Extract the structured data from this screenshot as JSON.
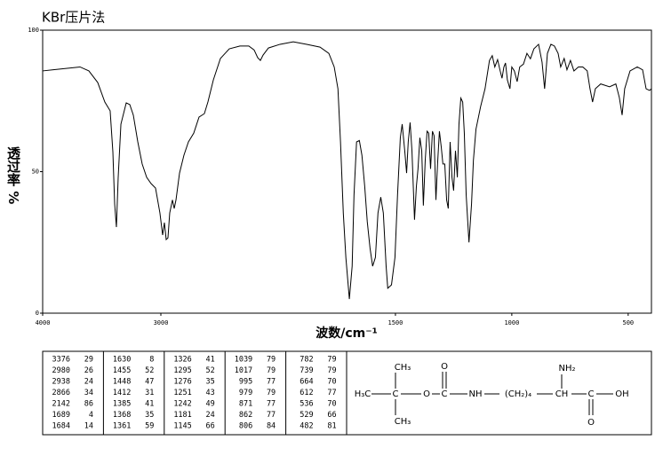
{
  "chart_data": {
    "type": "line",
    "title": "KBr压片法",
    "xlabel": "波数/cm⁻¹",
    "ylabel": "透过率 %",
    "xlim": [
      4000,
      400
    ],
    "x_scale_break": 2000,
    "xticks": [
      4000,
      3000,
      1500,
      1000,
      500
    ],
    "ylim": [
      0,
      100
    ],
    "yticks": [
      0,
      50,
      100
    ],
    "color": "#000000",
    "grid": false,
    "x": [
      4000,
      3910,
      3684,
      3609,
      3534,
      3474,
      3429,
      3406,
      3391,
      3376,
      3361,
      3338,
      3293,
      3263,
      3233,
      3195,
      3158,
      3120,
      3083,
      3045,
      3008,
      2985,
      2970,
      2955,
      2940,
      2925,
      2902,
      2887,
      2872,
      2842,
      2805,
      2767,
      2722,
      2677,
      2632,
      2602,
      2556,
      2496,
      2421,
      2331,
      2256,
      2211,
      2181,
      2158,
      2135,
      2090,
      1996,
      1939,
      1881,
      1824,
      1786,
      1763,
      1747,
      1736,
      1724,
      1713,
      1698,
      1686,
      1678,
      1667,
      1655,
      1644,
      1632,
      1621,
      1609,
      1598,
      1586,
      1575,
      1563,
      1552,
      1540,
      1533,
      1517,
      1502,
      1491,
      1479,
      1471,
      1460,
      1452,
      1445,
      1437,
      1429,
      1418,
      1410,
      1403,
      1395,
      1387,
      1380,
      1372,
      1364,
      1357,
      1349,
      1341,
      1334,
      1326,
      1319,
      1311,
      1303,
      1296,
      1288,
      1280,
      1273,
      1265,
      1257,
      1250,
      1242,
      1234,
      1227,
      1219,
      1211,
      1204,
      1196,
      1184,
      1173,
      1165,
      1154,
      1134,
      1115,
      1096,
      1084,
      1073,
      1061,
      1050,
      1042,
      1034,
      1027,
      1019,
      1008,
      1000,
      989,
      977,
      966,
      950,
      935,
      920,
      905,
      885,
      870,
      859,
      847,
      832,
      817,
      801,
      790,
      775,
      763,
      748,
      733,
      714,
      695,
      676,
      664,
      653,
      641,
      618,
      580,
      553,
      538,
      526,
      515,
      492,
      461,
      438,
      423,
      408,
      400
    ],
    "values": [
      85.6,
      86,
      87,
      85.6,
      81.5,
      74.6,
      71.5,
      57,
      38.6,
      30.4,
      48,
      66.8,
      74.3,
      73.7,
      70,
      60.5,
      52.7,
      48,
      45.8,
      44.2,
      35.4,
      27.6,
      32,
      26,
      26.6,
      35.4,
      40,
      37,
      40,
      49.5,
      55.8,
      60.5,
      63.6,
      69.3,
      70.5,
      74.6,
      82.4,
      90,
      93.4,
      94.4,
      94.4,
      93,
      90.3,
      89.3,
      91.2,
      93.7,
      95,
      95.9,
      95,
      94,
      91.8,
      87,
      79.3,
      60.5,
      35.4,
      19.7,
      5,
      16.6,
      41.7,
      60.5,
      61,
      55.8,
      44.8,
      32.3,
      22.9,
      16.6,
      19.7,
      35.4,
      41,
      35.4,
      16.6,
      8.8,
      10,
      19.7,
      41.7,
      62,
      66.8,
      57.4,
      49.5,
      60.5,
      67.4,
      57.4,
      33,
      44.8,
      51,
      62,
      57.4,
      38,
      54,
      64.3,
      63.6,
      51,
      64.3,
      62.7,
      40,
      52.7,
      64.3,
      58.6,
      52.7,
      52.7,
      40,
      37,
      60.5,
      48,
      43.3,
      57.4,
      48,
      66.8,
      76,
      74.6,
      63.6,
      41.7,
      25,
      38.6,
      54,
      65,
      73,
      79.3,
      89.3,
      91,
      87,
      89.6,
      85.6,
      83,
      87,
      88.4,
      82.4,
      79.3,
      87,
      85.6,
      81.8,
      87,
      88,
      91.8,
      89.9,
      93.4,
      95,
      88.7,
      79.3,
      91.8,
      95,
      94.4,
      91.8,
      87,
      90,
      86,
      89.3,
      85.6,
      87,
      87,
      85.6,
      79.3,
      74.6,
      79.3,
      81,
      80,
      81,
      76.2,
      70,
      79.3,
      85.6,
      87,
      86,
      79.3,
      78.7,
      79.3
    ]
  },
  "peak_table": {
    "columns": [
      [
        [
          "3376",
          "29"
        ],
        [
          "2980",
          "26"
        ],
        [
          "2938",
          "24"
        ],
        [
          "2866",
          "34"
        ],
        [
          "2142",
          "86"
        ],
        [
          "1689",
          "4"
        ],
        [
          "1684",
          "14"
        ]
      ],
      [
        [
          "1630",
          "8"
        ],
        [
          "1455",
          "52"
        ],
        [
          "1448",
          "47"
        ],
        [
          "1412",
          "31"
        ],
        [
          "1385",
          "41"
        ],
        [
          "1368",
          "35"
        ],
        [
          "1361",
          "59"
        ]
      ],
      [
        [
          "1326",
          "41"
        ],
        [
          "1295",
          "52"
        ],
        [
          "1276",
          "35"
        ],
        [
          "1251",
          "43"
        ],
        [
          "1242",
          "49"
        ],
        [
          "1181",
          "24"
        ],
        [
          "1145",
          "66"
        ]
      ],
      [
        [
          "1039",
          "79"
        ],
        [
          "1017",
          "79"
        ],
        [
          "995",
          "77"
        ],
        [
          "979",
          "79"
        ],
        [
          "871",
          "77"
        ],
        [
          "862",
          "77"
        ],
        [
          "806",
          "84"
        ]
      ],
      [
        [
          "782",
          "79"
        ],
        [
          "739",
          "79"
        ],
        [
          "664",
          "70"
        ],
        [
          "612",
          "77"
        ],
        [
          "536",
          "70"
        ],
        [
          "529",
          "66"
        ],
        [
          "482",
          "81"
        ]
      ]
    ]
  },
  "structure": {
    "labels": [
      "H₃C",
      "C",
      "CH₃",
      "CH₃",
      "O",
      "C",
      "O",
      "NH",
      "(CH₂)₄",
      "CH",
      "NH₂",
      "C",
      "O",
      "OH"
    ]
  }
}
